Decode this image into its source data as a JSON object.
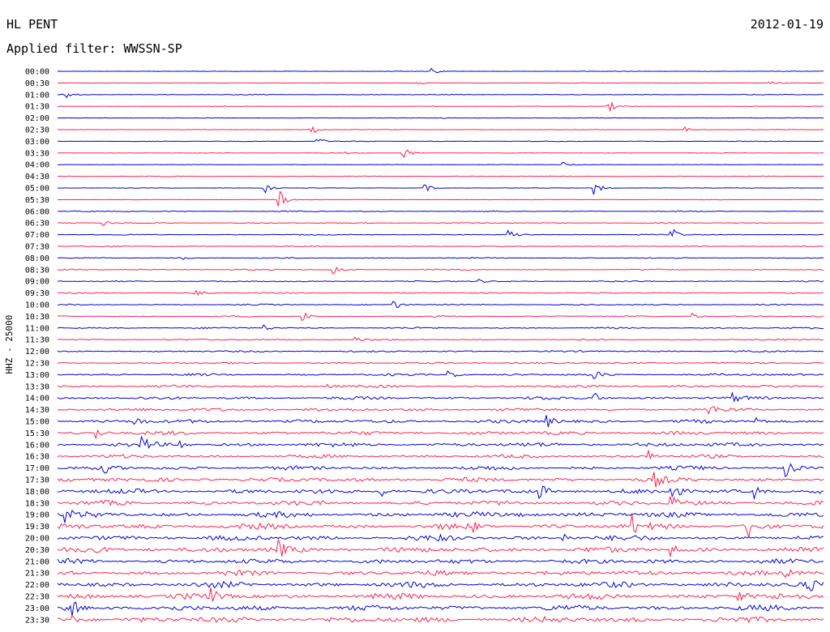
{
  "header": {
    "station": "HL PENT",
    "date": "2012-01-19",
    "filter": "Applied filter: WWSSN-SP"
  },
  "chart_data": {
    "type": "line",
    "title": "HL PENT",
    "date": "2012-01-19",
    "filter": "Applied filter: WWSSN-SP",
    "ylabel": "HHZ - 25000",
    "row_interval_minutes": 30,
    "colors": {
      "odd_hour_row": "#0000e0",
      "half_hour_row": "#ff2050"
    },
    "rows": [
      "00:00",
      "00:30",
      "01:00",
      "01:30",
      "02:00",
      "02:30",
      "03:00",
      "03:30",
      "04:00",
      "04:30",
      "05:00",
      "05:30",
      "06:00",
      "06:30",
      "07:00",
      "07:30",
      "08:00",
      "08:30",
      "09:00",
      "09:30",
      "10:00",
      "10:30",
      "11:00",
      "11:30",
      "12:00",
      "12:30",
      "13:00",
      "13:30",
      "14:00",
      "14:30",
      "15:00",
      "15:30",
      "16:00",
      "16:30",
      "17:00",
      "17:30",
      "18:00",
      "18:30",
      "19:00",
      "19:30",
      "20:00",
      "20:30",
      "21:00",
      "21:30",
      "22:00",
      "22:30",
      "23:00",
      "23:30"
    ],
    "noise_level": [
      0.2,
      0.2,
      0.3,
      0.2,
      0.2,
      0.2,
      0.3,
      0.2,
      0.2,
      0.3,
      0.2,
      0.2,
      0.4,
      0.4,
      0.4,
      0.4,
      0.4,
      0.5,
      0.5,
      0.5,
      0.5,
      0.5,
      0.6,
      0.6,
      0.7,
      0.7,
      0.9,
      1.0,
      1.2,
      1.3,
      1.4,
      1.5,
      1.6,
      1.3,
      1.6,
      1.7,
      1.9,
      1.8,
      2.1,
      2.2,
      2.0,
      2.2,
      1.9,
      2.0,
      2.2,
      2.3,
      2.2,
      2.3
    ],
    "events": [
      {
        "row": 0,
        "x": 0.49,
        "amp": 4
      },
      {
        "row": 1,
        "x": 0.47,
        "amp": 3
      },
      {
        "row": 1,
        "x": 0.93,
        "amp": 3
      },
      {
        "row": 2,
        "x": 0.01,
        "amp": 6
      },
      {
        "row": 3,
        "x": 0.72,
        "amp": 7
      },
      {
        "row": 4,
        "x": 0.5,
        "amp": 3
      },
      {
        "row": 5,
        "x": 0.33,
        "amp": 9
      },
      {
        "row": 5,
        "x": 0.82,
        "amp": 3
      },
      {
        "row": 6,
        "x": 0.34,
        "amp": 4
      },
      {
        "row": 7,
        "x": 0.45,
        "amp": 10
      },
      {
        "row": 7,
        "x": 0.37,
        "amp": 3
      },
      {
        "row": 8,
        "x": 0.66,
        "amp": 4
      },
      {
        "row": 10,
        "x": 0.27,
        "amp": 7
      },
      {
        "row": 10,
        "x": 0.48,
        "amp": 5
      },
      {
        "row": 10,
        "x": 0.7,
        "amp": 10
      },
      {
        "row": 11,
        "x": 0.29,
        "amp": 11
      },
      {
        "row": 13,
        "x": 0.06,
        "amp": 4
      },
      {
        "row": 14,
        "x": 0.59,
        "amp": 6
      },
      {
        "row": 14,
        "x": 0.8,
        "amp": 11
      },
      {
        "row": 16,
        "x": 0.16,
        "amp": 3
      },
      {
        "row": 17,
        "x": 0.36,
        "amp": 6
      },
      {
        "row": 18,
        "x": 0.55,
        "amp": 3
      },
      {
        "row": 19,
        "x": 0.18,
        "amp": 3
      },
      {
        "row": 20,
        "x": 0.44,
        "amp": 6
      },
      {
        "row": 21,
        "x": 0.32,
        "amp": 7
      },
      {
        "row": 21,
        "x": 0.83,
        "amp": 4
      },
      {
        "row": 22,
        "x": 0.27,
        "amp": 4
      },
      {
        "row": 23,
        "x": 0.39,
        "amp": 4
      },
      {
        "row": 26,
        "x": 0.51,
        "amp": 6
      },
      {
        "row": 26,
        "x": 0.7,
        "amp": 5
      },
      {
        "row": 27,
        "x": 0.35,
        "amp": 5
      },
      {
        "row": 28,
        "x": 0.7,
        "amp": 8
      },
      {
        "row": 28,
        "x": 0.88,
        "amp": 6
      },
      {
        "row": 29,
        "x": 0.85,
        "amp": 6
      },
      {
        "row": 30,
        "x": 0.1,
        "amp": 9
      },
      {
        "row": 30,
        "x": 0.64,
        "amp": 7
      },
      {
        "row": 30,
        "x": 0.91,
        "amp": 7
      },
      {
        "row": 31,
        "x": 0.05,
        "amp": 8
      },
      {
        "row": 32,
        "x": 0.11,
        "amp": 10
      },
      {
        "row": 32,
        "x": 0.16,
        "amp": 6
      },
      {
        "row": 33,
        "x": 0.77,
        "amp": 8
      },
      {
        "row": 34,
        "x": 0.95,
        "amp": 12
      },
      {
        "row": 34,
        "x": 0.06,
        "amp": 6
      },
      {
        "row": 35,
        "x": 0.78,
        "amp": 8
      },
      {
        "row": 36,
        "x": 0.8,
        "amp": 14
      },
      {
        "row": 36,
        "x": 0.42,
        "amp": 8
      },
      {
        "row": 36,
        "x": 0.63,
        "amp": 9
      },
      {
        "row": 36,
        "x": 0.91,
        "amp": 9
      },
      {
        "row": 37,
        "x": 0.8,
        "amp": 10
      },
      {
        "row": 38,
        "x": 0.6,
        "amp": 7
      },
      {
        "row": 38,
        "x": 0.01,
        "amp": 7
      },
      {
        "row": 39,
        "x": 0.75,
        "amp": 12
      },
      {
        "row": 39,
        "x": 0.9,
        "amp": 20
      },
      {
        "row": 39,
        "x": 0.54,
        "amp": 7
      },
      {
        "row": 40,
        "x": 0.49,
        "amp": 6
      },
      {
        "row": 40,
        "x": 0.66,
        "amp": 7
      },
      {
        "row": 41,
        "x": 0.29,
        "amp": 10
      },
      {
        "row": 41,
        "x": 0.8,
        "amp": 7
      },
      {
        "row": 43,
        "x": 0.95,
        "amp": 6
      },
      {
        "row": 44,
        "x": 0.98,
        "amp": 8
      },
      {
        "row": 45,
        "x": 0.2,
        "amp": 8
      },
      {
        "row": 45,
        "x": 0.89,
        "amp": 6
      },
      {
        "row": 46,
        "x": 0.02,
        "amp": 9
      },
      {
        "row": 47,
        "x": 0.02,
        "amp": 5
      }
    ]
  }
}
